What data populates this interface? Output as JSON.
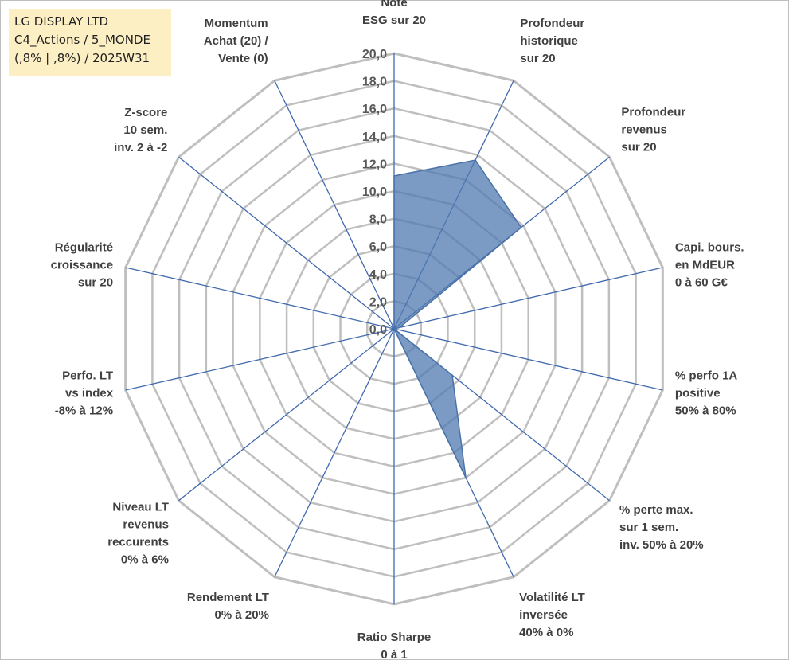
{
  "header": {
    "line1": "LG DISPLAY LTD",
    "line2": "C4_Actions / 5_MONDE",
    "line3": "(,8% | ,8%) / 2025W31"
  },
  "chart_data": {
    "type": "radar",
    "title": "",
    "rmin": 0,
    "rmax": 20,
    "tick_step": 2,
    "tick_labels": [
      "0,0",
      "2,0",
      "4,0",
      "6,0",
      "8,0",
      "10,0",
      "12,0",
      "14,0",
      "16,0",
      "18,0",
      "20,0"
    ],
    "categories": [
      [
        "Note",
        "ESG sur 20"
      ],
      [
        "Profondeur",
        "historique",
        "sur 20"
      ],
      [
        "Profondeur",
        "revenus",
        "sur 20"
      ],
      [
        "Capi. bours.",
        "en MdEUR",
        "0 à 60 G€"
      ],
      [
        "% perfo 1A",
        "positive",
        "50% à 80%"
      ],
      [
        "% perte max.",
        "sur 1 sem.",
        "inv. 50% à 20%"
      ],
      [
        "Volatilité LT",
        "inversée",
        "40% à 0%"
      ],
      [
        "Ratio Sharpe",
        "0 à 1"
      ],
      [
        "Rendement LT",
        "0% à 20%"
      ],
      [
        "Niveau LT",
        "revenus",
        "reccurents",
        "0% à 6%"
      ],
      [
        "Perfo. LT",
        "vs index",
        "-8% à 12%"
      ],
      [
        "Régularité",
        "croissance",
        "sur 20"
      ],
      [
        "Z-score",
        "10 sem.",
        "inv. 2 à -2"
      ],
      [
        "Momentum",
        "Achat (20) /",
        "Vente (0)"
      ]
    ],
    "series": [
      {
        "values": [
          11.1,
          13.6,
          11.8,
          0.4,
          0.0,
          5.4,
          12.0,
          0.0,
          0.0,
          0.0,
          0.0,
          0.0,
          0.0,
          0.0
        ],
        "fill": "#4f79b0",
        "fill_opacity": 0.75,
        "stroke": "#4a72a8"
      }
    ],
    "grid": true,
    "colors": {
      "grid": "#bfbfbf",
      "spoke": "#3f69ad"
    }
  }
}
